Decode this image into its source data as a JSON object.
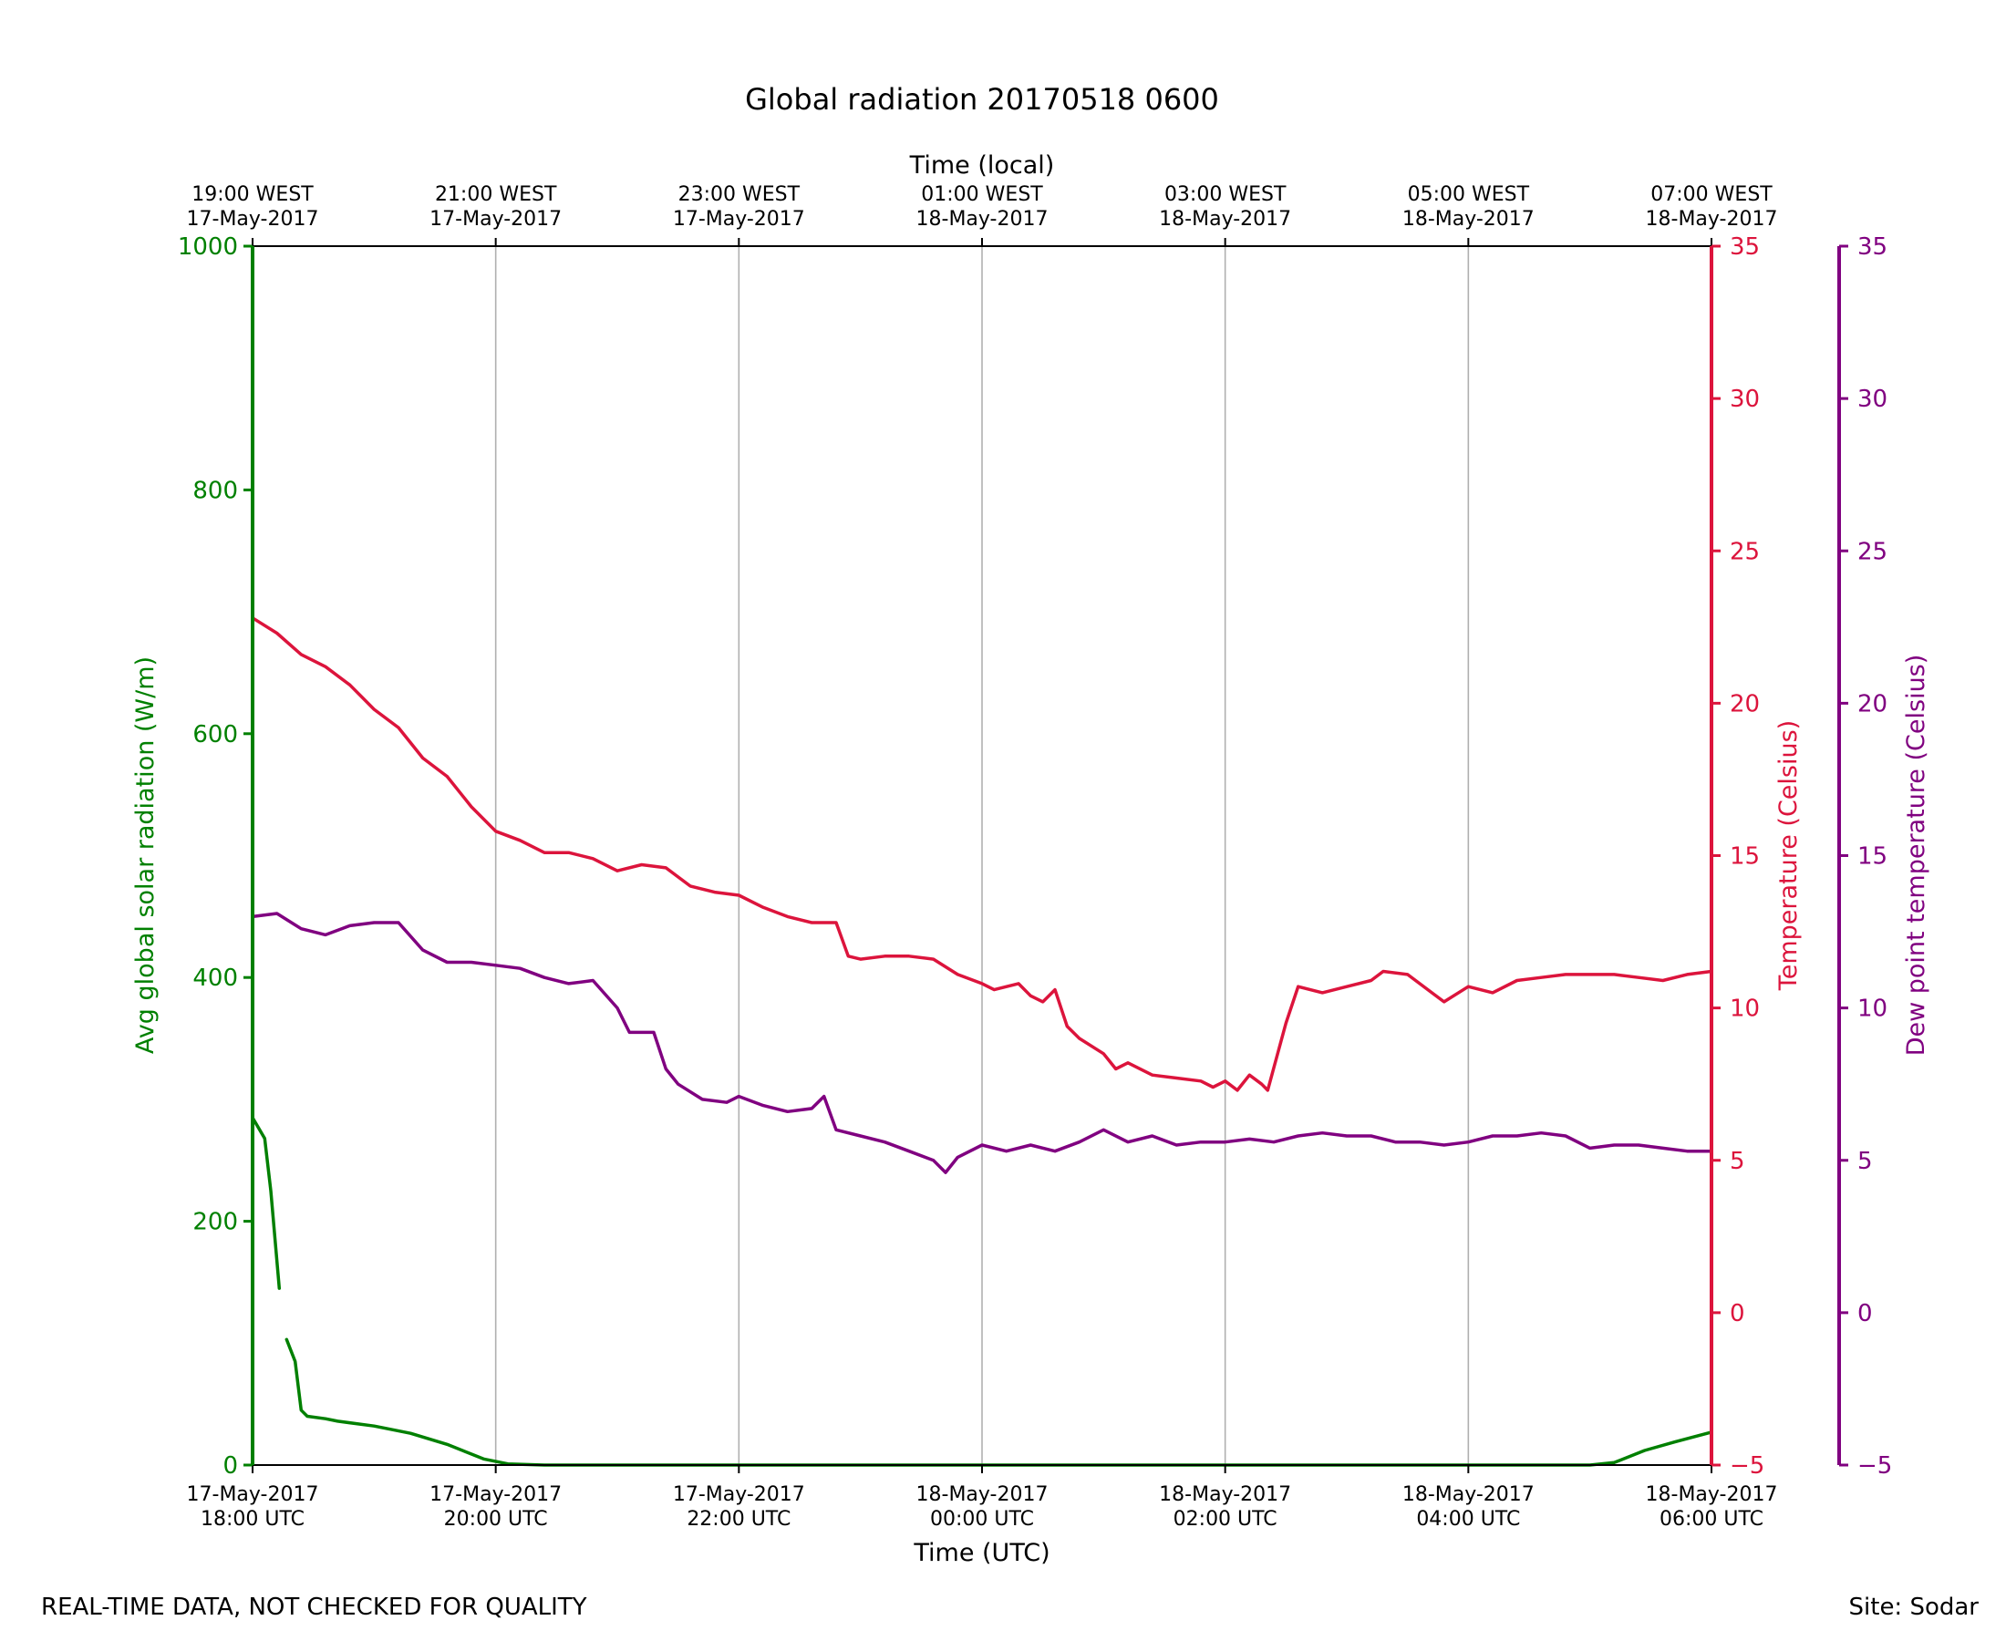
{
  "footer": {
    "left": "REAL-TIME DATA, NOT CHECKED FOR QUALITY",
    "right": "Site: Sodar"
  },
  "chart_data": {
    "type": "line",
    "title": "Global radiation 20170518 0600",
    "xlabel": "Time (UTC)",
    "x2label": "Time (local)",
    "x_unit": "hours since 17-May-2017 18:00 UTC",
    "xlim": [
      0,
      12
    ],
    "grid": "vertical",
    "x_ticks": [
      {
        "x": 0,
        "bottom": [
          "17-May-2017",
          "18:00 UTC"
        ],
        "top": [
          "19:00 WEST",
          "17-May-2017"
        ]
      },
      {
        "x": 2,
        "bottom": [
          "17-May-2017",
          "20:00 UTC"
        ],
        "top": [
          "21:00 WEST",
          "17-May-2017"
        ]
      },
      {
        "x": 4,
        "bottom": [
          "17-May-2017",
          "22:00 UTC"
        ],
        "top": [
          "23:00 WEST",
          "17-May-2017"
        ]
      },
      {
        "x": 6,
        "bottom": [
          "18-May-2017",
          "00:00 UTC"
        ],
        "top": [
          "01:00 WEST",
          "18-May-2017"
        ]
      },
      {
        "x": 8,
        "bottom": [
          "18-May-2017",
          "02:00 UTC"
        ],
        "top": [
          "03:00 WEST",
          "18-May-2017"
        ]
      },
      {
        "x": 10,
        "bottom": [
          "18-May-2017",
          "04:00 UTC"
        ],
        "top": [
          "05:00 WEST",
          "18-May-2017"
        ]
      },
      {
        "x": 12,
        "bottom": [
          "18-May-2017",
          "06:00 UTC"
        ],
        "top": [
          "07:00 WEST",
          "18-May-2017"
        ]
      }
    ],
    "axes": {
      "radiation": {
        "label": "Avg global solar radiation (W/m)",
        "ylim": [
          0,
          1000
        ],
        "ticks": [
          0,
          200,
          400,
          600,
          800,
          1000
        ],
        "color": "#008000"
      },
      "temperature": {
        "label": "Temperature (Celsius)",
        "ylim": [
          -5,
          35
        ],
        "ticks": [
          -5,
          0,
          5,
          10,
          15,
          20,
          25,
          30,
          35
        ],
        "color": "#DC143C"
      },
      "dewpoint": {
        "label": "Dew point temperature (Celsius)",
        "ylim": [
          -5,
          35
        ],
        "ticks": [
          -5,
          0,
          5,
          10,
          15,
          20,
          25,
          30,
          35
        ],
        "color": "#800080"
      }
    },
    "series": [
      {
        "name": "Avg global solar radiation",
        "axis": "radiation",
        "color": "#008000",
        "points": [
          [
            0,
            285
          ],
          [
            0.1,
            268
          ],
          [
            0.15,
            225
          ],
          [
            0.22,
            145
          ],
          null,
          [
            0.28,
            103
          ],
          [
            0.35,
            85
          ],
          [
            0.4,
            45
          ],
          [
            0.45,
            40
          ],
          [
            0.6,
            38
          ],
          [
            0.7,
            36
          ],
          [
            1.0,
            32
          ],
          [
            1.3,
            26
          ],
          [
            1.6,
            17
          ],
          [
            1.9,
            5
          ],
          [
            2.1,
            1
          ],
          [
            2.4,
            0
          ],
          [
            11.0,
            0
          ],
          [
            11.2,
            2
          ],
          [
            11.45,
            12
          ],
          [
            11.7,
            19
          ],
          [
            12.0,
            27
          ]
        ]
      },
      {
        "name": "Temperature",
        "axis": "temperature",
        "color": "#DC143C",
        "points": [
          [
            0,
            22.8
          ],
          [
            0.2,
            22.3
          ],
          [
            0.4,
            21.6
          ],
          [
            0.6,
            21.2
          ],
          [
            0.8,
            20.6
          ],
          [
            1.0,
            19.8
          ],
          [
            1.2,
            19.2
          ],
          [
            1.4,
            18.2
          ],
          [
            1.6,
            17.6
          ],
          [
            1.8,
            16.6
          ],
          [
            2.0,
            15.8
          ],
          [
            2.2,
            15.5
          ],
          [
            2.4,
            15.1
          ],
          [
            2.6,
            15.1
          ],
          [
            2.8,
            14.9
          ],
          [
            3.0,
            14.5
          ],
          [
            3.2,
            14.7
          ],
          [
            3.4,
            14.6
          ],
          [
            3.6,
            14.0
          ],
          [
            3.8,
            13.8
          ],
          [
            4.0,
            13.7
          ],
          [
            4.2,
            13.3
          ],
          [
            4.4,
            13.0
          ],
          [
            4.6,
            12.8
          ],
          [
            4.8,
            12.8
          ],
          [
            4.9,
            11.7
          ],
          [
            5.0,
            11.6
          ],
          [
            5.2,
            11.7
          ],
          [
            5.4,
            11.7
          ],
          [
            5.6,
            11.6
          ],
          [
            5.8,
            11.1
          ],
          [
            6.0,
            10.8
          ],
          [
            6.1,
            10.6
          ],
          [
            6.3,
            10.8
          ],
          [
            6.4,
            10.4
          ],
          [
            6.5,
            10.2
          ],
          [
            6.6,
            10.6
          ],
          [
            6.7,
            9.4
          ],
          [
            6.8,
            9.0
          ],
          [
            7.0,
            8.5
          ],
          [
            7.1,
            8.0
          ],
          [
            7.2,
            8.2
          ],
          [
            7.4,
            7.8
          ],
          [
            7.6,
            7.7
          ],
          [
            7.8,
            7.6
          ],
          [
            7.9,
            7.4
          ],
          [
            8.0,
            7.6
          ],
          [
            8.1,
            7.3
          ],
          [
            8.2,
            7.8
          ],
          [
            8.3,
            7.5
          ],
          [
            8.35,
            7.3
          ],
          [
            8.5,
            9.5
          ],
          [
            8.6,
            10.7
          ],
          [
            8.8,
            10.5
          ],
          [
            9.0,
            10.7
          ],
          [
            9.2,
            10.9
          ],
          [
            9.3,
            11.2
          ],
          [
            9.5,
            11.1
          ],
          [
            9.7,
            10.5
          ],
          [
            9.8,
            10.2
          ],
          [
            10.0,
            10.7
          ],
          [
            10.2,
            10.5
          ],
          [
            10.4,
            10.9
          ],
          [
            10.6,
            11.0
          ],
          [
            10.8,
            11.1
          ],
          [
            11.0,
            11.1
          ],
          [
            11.2,
            11.1
          ],
          [
            11.4,
            11.0
          ],
          [
            11.6,
            10.9
          ],
          [
            11.8,
            11.1
          ],
          [
            12.0,
            11.2
          ]
        ]
      },
      {
        "name": "Dew point temperature",
        "axis": "dewpoint",
        "color": "#800080",
        "points": [
          [
            0,
            13.0
          ],
          [
            0.2,
            13.1
          ],
          [
            0.4,
            12.6
          ],
          [
            0.6,
            12.4
          ],
          [
            0.8,
            12.7
          ],
          [
            1.0,
            12.8
          ],
          [
            1.2,
            12.8
          ],
          [
            1.4,
            11.9
          ],
          [
            1.6,
            11.5
          ],
          [
            1.8,
            11.5
          ],
          [
            2.0,
            11.4
          ],
          [
            2.2,
            11.3
          ],
          [
            2.4,
            11.0
          ],
          [
            2.6,
            10.8
          ],
          [
            2.8,
            10.9
          ],
          [
            3.0,
            10.0
          ],
          [
            3.1,
            9.2
          ],
          [
            3.3,
            9.2
          ],
          [
            3.4,
            8.0
          ],
          [
            3.5,
            7.5
          ],
          [
            3.7,
            7.0
          ],
          [
            3.9,
            6.9
          ],
          [
            4.0,
            7.1
          ],
          [
            4.2,
            6.8
          ],
          [
            4.4,
            6.6
          ],
          [
            4.6,
            6.7
          ],
          [
            4.7,
            7.1
          ],
          [
            4.8,
            6.0
          ],
          [
            5.0,
            5.8
          ],
          [
            5.2,
            5.6
          ],
          [
            5.4,
            5.3
          ],
          [
            5.6,
            5.0
          ],
          [
            5.7,
            4.6
          ],
          [
            5.8,
            5.1
          ],
          [
            6.0,
            5.5
          ],
          [
            6.2,
            5.3
          ],
          [
            6.4,
            5.5
          ],
          [
            6.6,
            5.3
          ],
          [
            6.8,
            5.6
          ],
          [
            7.0,
            6.0
          ],
          [
            7.2,
            5.6
          ],
          [
            7.4,
            5.8
          ],
          [
            7.6,
            5.5
          ],
          [
            7.8,
            5.6
          ],
          [
            8.0,
            5.6
          ],
          [
            8.2,
            5.7
          ],
          [
            8.4,
            5.6
          ],
          [
            8.6,
            5.8
          ],
          [
            8.8,
            5.9
          ],
          [
            9.0,
            5.8
          ],
          [
            9.2,
            5.8
          ],
          [
            9.4,
            5.6
          ],
          [
            9.6,
            5.6
          ],
          [
            9.8,
            5.5
          ],
          [
            10.0,
            5.6
          ],
          [
            10.2,
            5.8
          ],
          [
            10.4,
            5.8
          ],
          [
            10.6,
            5.9
          ],
          [
            10.8,
            5.8
          ],
          [
            11.0,
            5.4
          ],
          [
            11.2,
            5.5
          ],
          [
            11.4,
            5.5
          ],
          [
            11.6,
            5.4
          ],
          [
            11.8,
            5.3
          ],
          [
            12.0,
            5.3
          ]
        ]
      }
    ]
  }
}
